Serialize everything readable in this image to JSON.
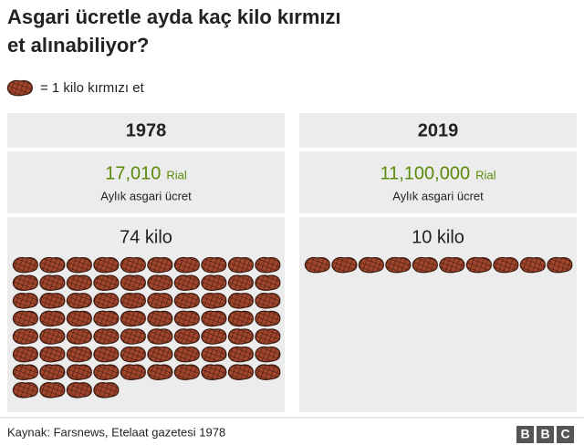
{
  "chart_data": {
    "type": "pictogram",
    "title": "Asgari ücretle ayda kaç kilo kırmızı et alınabiliyor?",
    "legend_label": "= 1 kilo kırmızı et",
    "categories": [
      "1978",
      "2019"
    ],
    "wages": [
      17010,
      11100000
    ],
    "wage_labels": [
      "17,010",
      "11,100,000"
    ],
    "wage_unit": "Rial",
    "wage_caption": "Aylık asgari ücret",
    "values": [
      74,
      10
    ],
    "value_labels": [
      "74 kilo",
      "10 kilo"
    ],
    "color": "#a0442c",
    "wage_color": "#5a8a0a",
    "source": "Kaynak: Farsnews, Etelaat gazetesi 1978",
    "logo": [
      "B",
      "B",
      "C"
    ]
  }
}
